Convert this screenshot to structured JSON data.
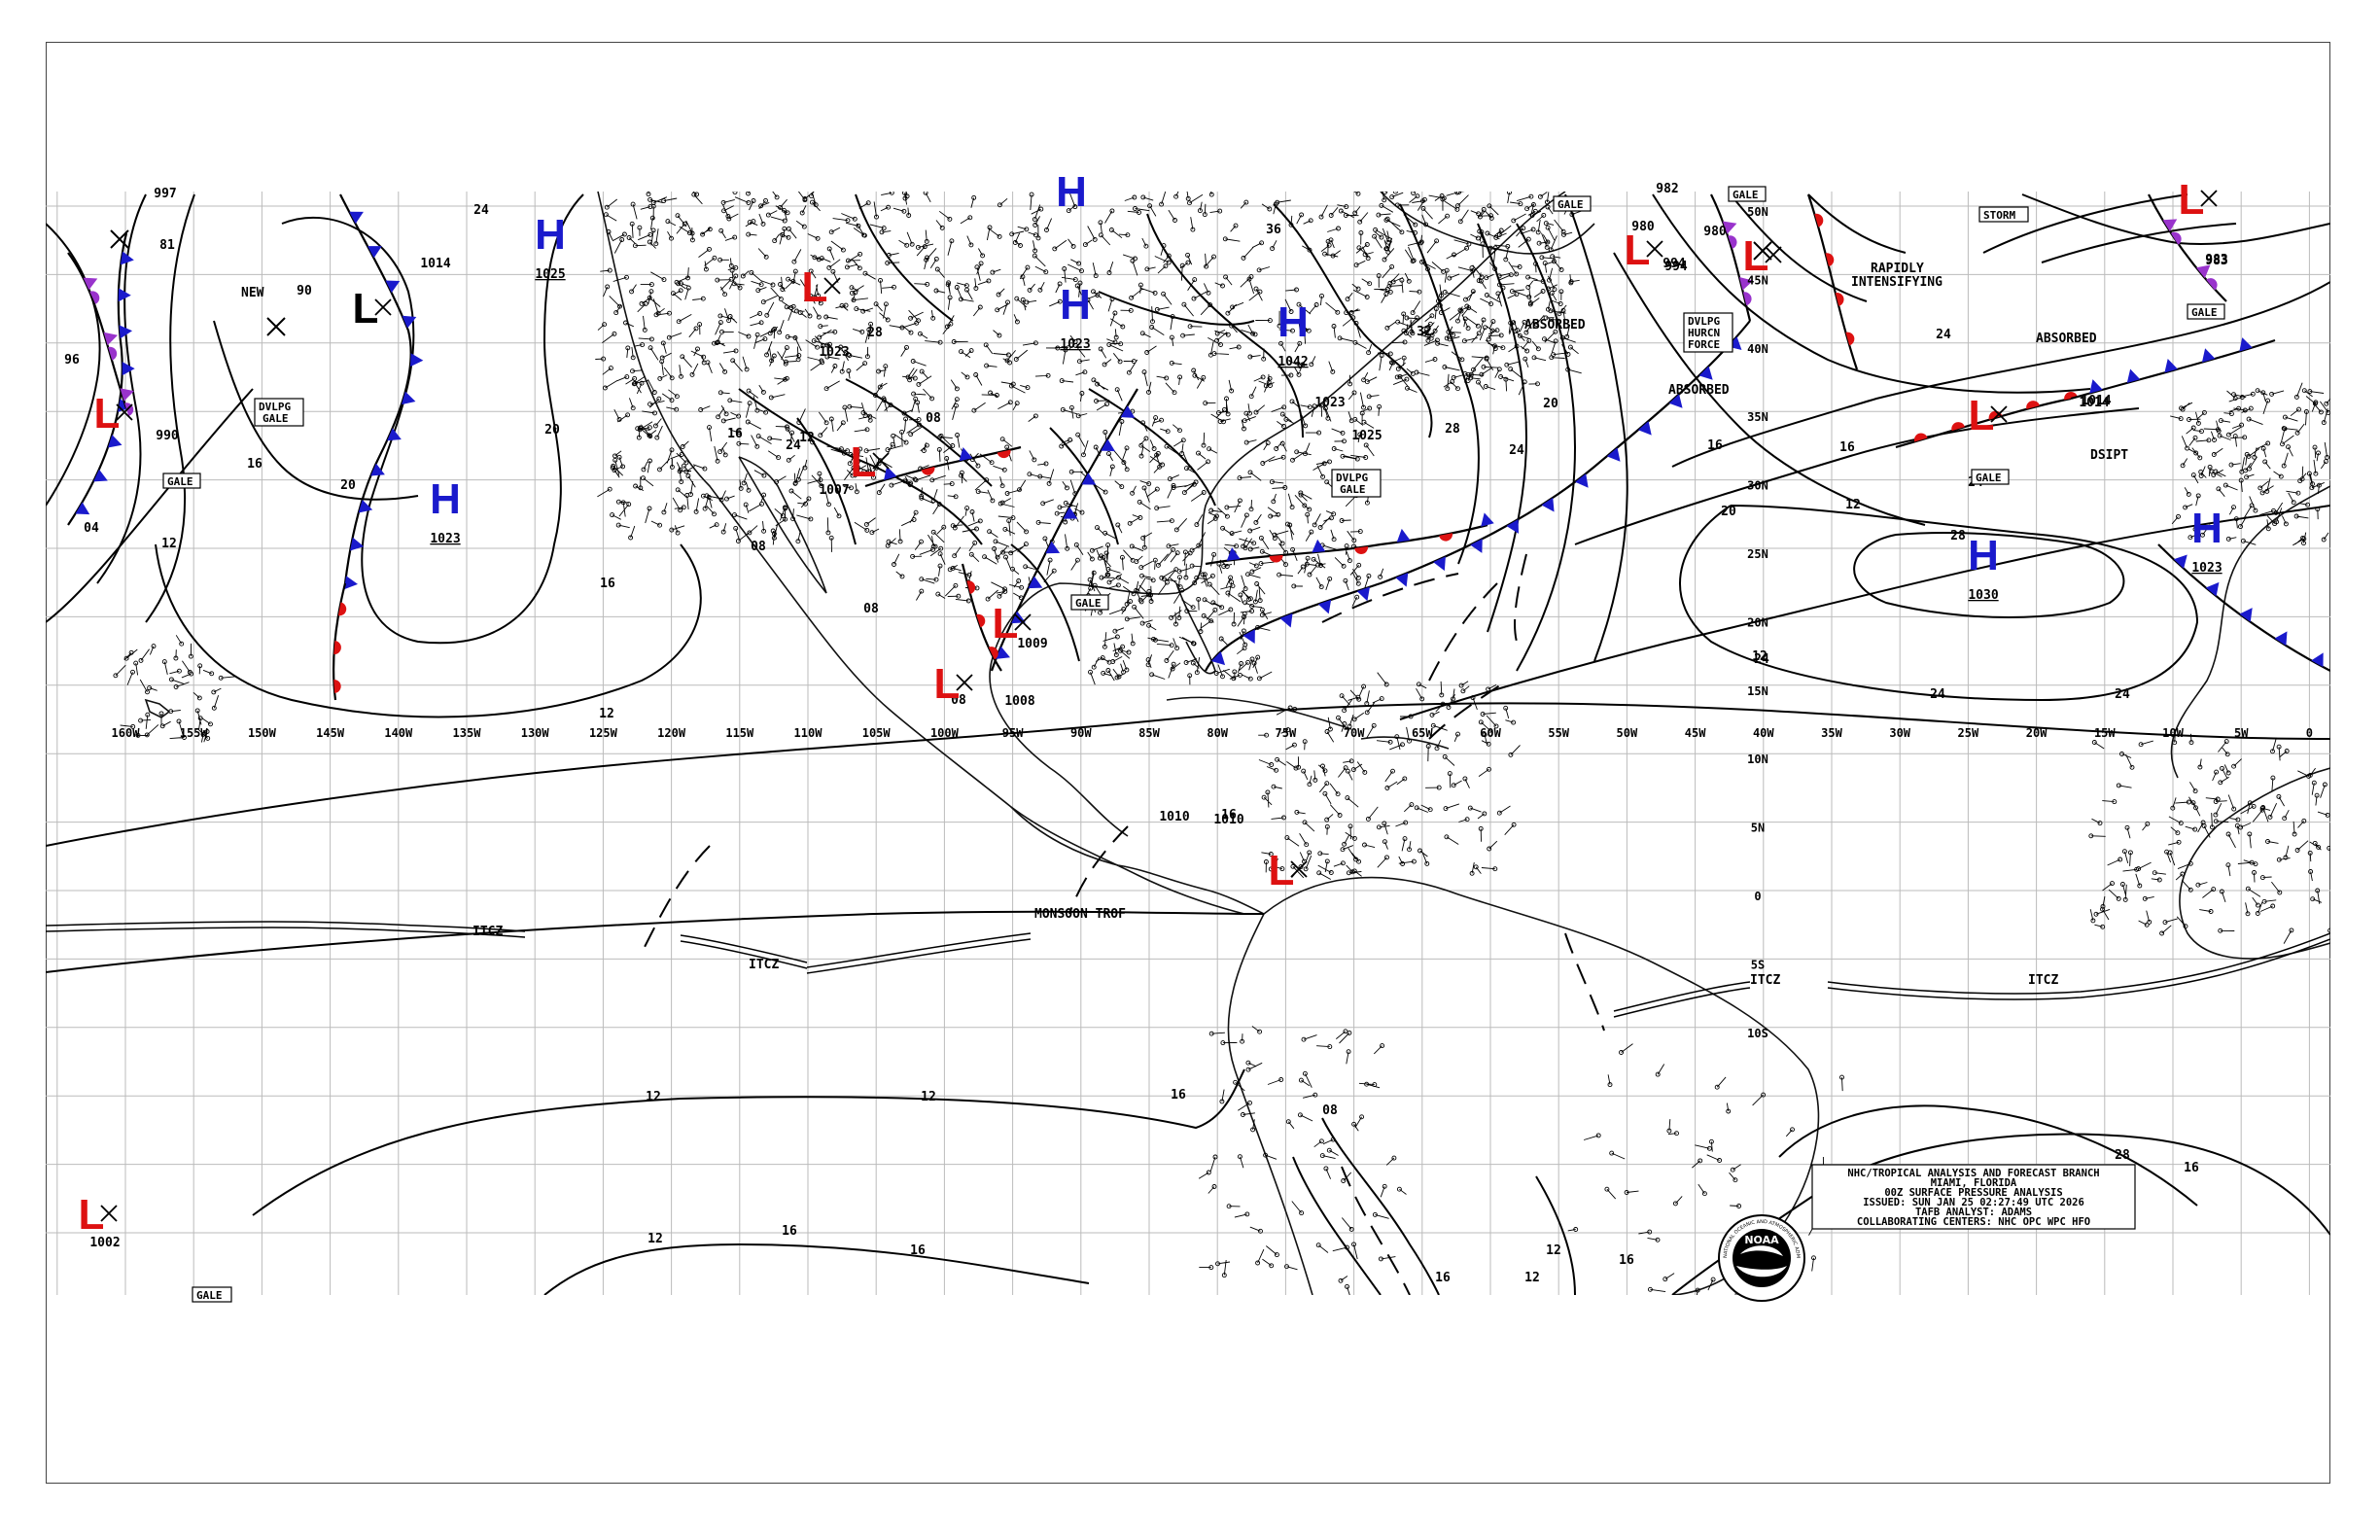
{
  "map": {
    "longitude_labels": [
      "160W",
      "155W",
      "150W",
      "145W",
      "140W",
      "135W",
      "130W",
      "125W",
      "120W",
      "115W",
      "110W",
      "105W",
      "100W",
      "95W",
      "90W",
      "85W",
      "80W",
      "75W",
      "70W",
      "65W",
      "60W",
      "55W",
      "50W",
      "45W",
      "40W",
      "35W",
      "30W",
      "25W",
      "20W",
      "15W",
      "10W",
      "5W",
      "0"
    ],
    "latitude_labels": [
      "50N",
      "45N",
      "40N",
      "35N",
      "30N",
      "25N",
      "20N",
      "15N",
      "10N",
      "5N",
      "0",
      "5S",
      "10S"
    ],
    "highs": [
      {
        "label": "H",
        "pressure": "1025"
      },
      {
        "label": "H",
        "pressure": "1023"
      },
      {
        "label": "H",
        "pressure": "1023"
      },
      {
        "label": "H",
        "pressure": "1028"
      },
      {
        "label": "H",
        "pressure": "1042"
      },
      {
        "label": "H",
        "pressure": "1030"
      },
      {
        "label": "H",
        "pressure": "1023"
      }
    ],
    "lows": [
      {
        "label": "L",
        "pressure": "990"
      },
      {
        "label": "L",
        "pressure": ""
      },
      {
        "label": "L",
        "pressure": "1023"
      },
      {
        "label": "L",
        "pressure": "1007"
      },
      {
        "label": "L",
        "pressure": "1009"
      },
      {
        "label": "L",
        "pressure": "1008"
      },
      {
        "label": "L",
        "pressure": "1010"
      },
      {
        "label": "L",
        "pressure": "994"
      },
      {
        "label": "L",
        "pressure": "980"
      },
      {
        "label": "L",
        "pressure": "1014"
      },
      {
        "label": "L",
        "pressure": "983"
      },
      {
        "label": "L",
        "pressure": "1002"
      }
    ],
    "annotations": {
      "new": "NEW",
      "dvlpg_gale": "DVLPG",
      "gale_word": "GALE",
      "gale": "GALE",
      "storm": "STORM",
      "absorbed": "ABSORBED",
      "rapidly": "RAPIDLY",
      "intensifying": "INTENSIFYING",
      "dvlpg_hurcn_1": "DVLPG",
      "dvlpg_hurcn_2": "HURCN",
      "dvlpg_hurcn_3": "FORCE",
      "dsipt": "DSIPT",
      "monsoon": "MONSOON TROF",
      "itcz": "ITCZ"
    },
    "isobar_labels": [
      "997",
      "81",
      "96",
      "90",
      "1014",
      "24",
      "04",
      "12",
      "16",
      "20",
      "16",
      "20",
      "24",
      "28",
      "36",
      "32",
      "20",
      "24",
      "28",
      "16",
      "20",
      "24",
      "12",
      "08",
      "12",
      "16",
      "08",
      "12",
      "16",
      "16",
      "1010",
      "12",
      "12",
      "12",
      "16",
      "16",
      "16",
      "12",
      "12",
      "16",
      "08",
      "08",
      "08",
      "12",
      "28",
      "24",
      "24",
      "24",
      "28",
      "16",
      "24",
      "16",
      "1014",
      "983",
      "982",
      "994",
      "980",
      "1025",
      "1023"
    ]
  },
  "info_box": {
    "line1": "NHC/TROPICAL ANALYSIS AND FORECAST BRANCH",
    "line2": "MIAMI, FLORIDA",
    "line3": "00Z SURFACE PRESSURE ANALYSIS",
    "line4": "ISSUED: SUN JAN 25 02:27:49 UTC 2026",
    "line5": "TAFB ANALYST: ADAMS",
    "line6": "COLLABORATING CENTERS: NHC OPC WPC HFO"
  },
  "logo": {
    "text": "NOAA",
    "ring_text": "NATIONAL OCEANIC AND ATMOSPHERIC ADMINISTRATION"
  },
  "colors": {
    "high": "#1a1acc",
    "low": "#dd1111",
    "cold_front": "#1a1acc",
    "warm_front": "#dd1111",
    "occluded": "#9933cc",
    "lines": "#000000"
  }
}
